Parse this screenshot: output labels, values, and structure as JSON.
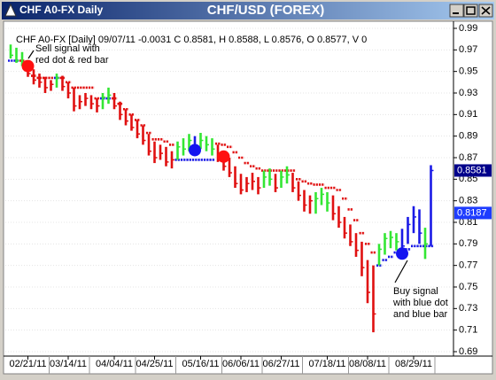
{
  "window_title": "CHF A0-FX Daily",
  "chart_data": {
    "type": "ohlc",
    "title": "CHF/USD (FOREX)",
    "info": "CHF A0-FX [Daily] 09/07/11 -0.0031 C 0.8581, H 0.8588, L 0.8576, O 0.8577, V 0",
    "categories": [
      null,
      null,
      null,
      "02/21/11",
      null,
      null,
      null,
      null,
      null,
      null,
      "03/14/11",
      null,
      null,
      null,
      null,
      null,
      null,
      null,
      "04/04/11",
      null,
      null,
      null,
      null,
      null,
      null,
      "04/25/11",
      null,
      null,
      null,
      null,
      null,
      null,
      null,
      "05/16/11",
      null,
      null,
      null,
      null,
      null,
      null,
      "06/06/11",
      null,
      null,
      null,
      null,
      null,
      null,
      "06/27/11",
      null,
      null,
      null,
      null,
      null,
      null,
      null,
      "07/18/11",
      null,
      null,
      null,
      null,
      null,
      null,
      "08/08/11",
      null,
      null,
      null,
      null,
      null,
      null,
      null,
      "08/29/11",
      null,
      null,
      null
    ],
    "high": [
      0.975,
      0.972,
      0.968,
      0.96,
      0.952,
      0.948,
      0.945,
      0.942,
      0.948,
      0.946,
      0.94,
      0.935,
      0.928,
      0.93,
      0.928,
      0.925,
      0.93,
      0.935,
      0.93,
      0.922,
      0.915,
      0.91,
      0.905,
      0.9,
      0.892,
      0.885,
      0.882,
      0.88,
      0.876,
      0.885,
      0.888,
      0.892,
      0.89,
      0.893,
      0.89,
      0.888,
      0.882,
      0.876,
      0.87,
      0.862,
      0.855,
      0.852,
      0.856,
      0.852,
      0.858,
      0.86,
      0.855,
      0.858,
      0.862,
      0.856,
      0.848,
      0.84,
      0.835,
      0.838,
      0.842,
      0.838,
      0.835,
      0.825,
      0.815,
      0.808,
      0.8,
      0.792,
      0.775,
      0.77,
      0.79,
      0.8,
      0.802,
      0.8,
      0.804,
      0.815,
      0.825,
      0.822,
      0.805,
      0.863
    ],
    "low": [
      0.962,
      0.958,
      0.955,
      0.945,
      0.938,
      0.935,
      0.93,
      0.932,
      0.935,
      0.932,
      0.925,
      0.913,
      0.915,
      0.918,
      0.915,
      0.912,
      0.915,
      0.92,
      0.915,
      0.905,
      0.9,
      0.895,
      0.888,
      0.882,
      0.872,
      0.865,
      0.868,
      0.862,
      0.86,
      0.868,
      0.872,
      0.876,
      0.874,
      0.878,
      0.876,
      0.872,
      0.866,
      0.858,
      0.852,
      0.842,
      0.836,
      0.838,
      0.84,
      0.836,
      0.842,
      0.844,
      0.838,
      0.842,
      0.846,
      0.838,
      0.83,
      0.82,
      0.818,
      0.818,
      0.826,
      0.82,
      0.812,
      0.805,
      0.795,
      0.788,
      0.778,
      0.76,
      0.735,
      0.708,
      0.77,
      0.78,
      0.786,
      0.784,
      0.782,
      0.79,
      0.8,
      0.79,
      0.776,
      0.788
    ],
    "close": [
      0.965,
      0.96,
      0.958,
      0.948,
      0.942,
      0.94,
      0.935,
      0.938,
      0.944,
      0.936,
      0.93,
      0.918,
      0.922,
      0.925,
      0.92,
      0.918,
      0.926,
      0.928,
      0.918,
      0.91,
      0.904,
      0.898,
      0.892,
      0.886,
      0.876,
      0.87,
      0.874,
      0.866,
      0.868,
      0.88,
      0.878,
      0.886,
      0.88,
      0.886,
      0.882,
      0.878,
      0.87,
      0.862,
      0.856,
      0.846,
      0.84,
      0.846,
      0.848,
      0.842,
      0.852,
      0.85,
      0.842,
      0.852,
      0.854,
      0.842,
      0.835,
      0.826,
      0.83,
      0.832,
      0.836,
      0.828,
      0.818,
      0.81,
      0.8,
      0.792,
      0.784,
      0.768,
      0.745,
      0.725,
      0.785,
      0.795,
      0.796,
      0.792,
      0.788,
      0.808,
      0.815,
      0.8,
      0.79,
      0.8581
    ],
    "bar_color": [
      "g",
      "g",
      "g",
      "r",
      "r",
      "r",
      "r",
      "r",
      "g",
      "r",
      "r",
      "r",
      "r",
      "r",
      "r",
      "r",
      "g",
      "g",
      "r",
      "r",
      "r",
      "r",
      "r",
      "r",
      "r",
      "r",
      "r",
      "r",
      "r",
      "g",
      "g",
      "g",
      "b",
      "g",
      "g",
      "g",
      "r",
      "r",
      "r",
      "r",
      "r",
      "r",
      "r",
      "r",
      "g",
      "g",
      "r",
      "g",
      "g",
      "r",
      "r",
      "r",
      "r",
      "g",
      "g",
      "g",
      "r",
      "r",
      "r",
      "r",
      "r",
      "r",
      "r",
      "r",
      "g",
      "g",
      "g",
      "g",
      "b",
      "b",
      "b",
      "b",
      "g",
      "b"
    ],
    "palette": {
      "g": "#33e633",
      "r": "#e01010",
      "b": "#1a1ae6"
    },
    "stop": [
      0.96,
      0.96,
      0.96,
      0.952,
      0.946,
      0.944,
      0.944,
      0.944,
      0.944,
      0.944,
      0.94,
      0.935,
      0.935,
      0.935,
      0.935,
      0.925,
      0.925,
      0.925,
      0.925,
      0.92,
      0.915,
      0.91,
      0.905,
      0.9,
      0.893,
      0.887,
      0.887,
      0.885,
      0.882,
      0.868,
      0.868,
      0.868,
      0.868,
      0.868,
      0.868,
      0.868,
      0.883,
      0.882,
      0.88,
      0.875,
      0.87,
      0.865,
      0.862,
      0.86,
      0.858,
      0.858,
      0.858,
      0.858,
      0.858,
      0.858,
      0.85,
      0.848,
      0.846,
      0.845,
      0.845,
      0.842,
      0.842,
      0.84,
      0.832,
      0.822,
      0.812,
      0.8,
      0.79,
      0.782,
      0.77,
      0.775,
      0.778,
      0.782,
      0.785,
      0.785,
      0.788,
      0.788,
      0.788,
      0.788
    ],
    "sell_signals": [
      null,
      null,
      null,
      0.955,
      null,
      null,
      null,
      null,
      null,
      null,
      null,
      null,
      null,
      null,
      null,
      null,
      null,
      null,
      null,
      null,
      null,
      null,
      null,
      null,
      null,
      null,
      null,
      null,
      null,
      null,
      null,
      null,
      null,
      null,
      null,
      null,
      null,
      0.871,
      null,
      null,
      null,
      null,
      null,
      null,
      null,
      null,
      null,
      null,
      null,
      null,
      null,
      null,
      null,
      null,
      null,
      null,
      null,
      null,
      null,
      null,
      null,
      null,
      null,
      null,
      null,
      null,
      null,
      null,
      null,
      null,
      null,
      null,
      null,
      null
    ],
    "buy_signals": [
      null,
      null,
      null,
      null,
      null,
      null,
      null,
      null,
      null,
      null,
      null,
      null,
      null,
      null,
      null,
      null,
      null,
      null,
      null,
      null,
      null,
      null,
      null,
      null,
      null,
      null,
      null,
      null,
      null,
      null,
      null,
      null,
      0.877,
      null,
      null,
      null,
      null,
      null,
      null,
      null,
      null,
      null,
      null,
      null,
      null,
      null,
      null,
      null,
      null,
      null,
      null,
      null,
      null,
      null,
      null,
      null,
      null,
      null,
      null,
      null,
      null,
      null,
      null,
      null,
      null,
      null,
      null,
      null,
      0.781,
      null,
      null,
      null,
      null,
      null
    ],
    "price_labels": [
      {
        "value": 0.8581,
        "color": "#00008b"
      },
      {
        "value": 0.8187,
        "color": "#1e3cff"
      }
    ],
    "annotations": [
      {
        "lines": [
          "Sell signal with",
          "red dot & red bar"
        ]
      },
      {
        "lines": [
          "Buy signal",
          "with blue dot",
          "and blue bar"
        ]
      }
    ],
    "ylim": [
      0.69,
      0.99
    ],
    "yticks": [
      0.99,
      0.97,
      0.95,
      0.93,
      0.91,
      0.89,
      0.87,
      0.85,
      0.83,
      0.81,
      0.79,
      0.77,
      0.75,
      0.73,
      0.71,
      0.69
    ],
    "grid": true
  }
}
